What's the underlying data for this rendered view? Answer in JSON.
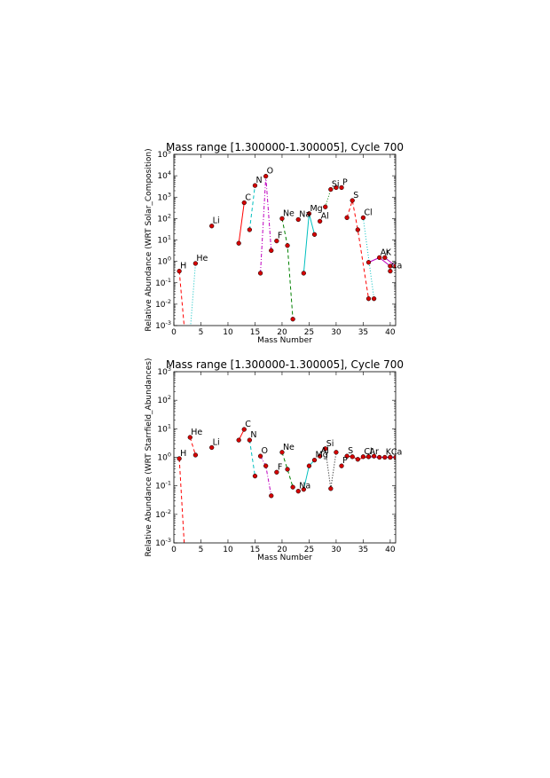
{
  "chart_data": [
    {
      "type": "line",
      "title": "Mass range [1.300000-1.300005], Cycle 700",
      "xlabel": "Mass Number",
      "ylabel": "Relative Abundance (WRT Solar_Composition)",
      "xlim": [
        0,
        41
      ],
      "ylim": [
        0.001,
        100000
      ],
      "yscale": "log",
      "xticks": [
        "0",
        "5",
        "10",
        "15",
        "20",
        "25",
        "30",
        "35",
        "40"
      ],
      "yticks": [
        {
          "base": "10",
          "exp": "-3"
        },
        {
          "base": "10",
          "exp": "-2"
        },
        {
          "base": "10",
          "exp": "-1"
        },
        {
          "base": "10",
          "exp": "0"
        },
        {
          "base": "10",
          "exp": "1"
        },
        {
          "base": "10",
          "exp": "2"
        },
        {
          "base": "10",
          "exp": "3"
        },
        {
          "base": "10",
          "exp": "4"
        },
        {
          "base": "10",
          "exp": "5"
        }
      ],
      "groups": [
        {
          "label": "H",
          "color": "#ff0000",
          "dash": "4,3",
          "points": [
            [
              1,
              0.35
            ],
            [
              2,
              0.0005
            ]
          ],
          "lx": 1,
          "ly": 0.35
        },
        {
          "label": "He",
          "color": "#00bfbf",
          "dash": "1,2",
          "points": [
            [
              3,
              0.0005
            ],
            [
              4,
              0.8
            ]
          ],
          "lx": 4,
          "ly": 0.8
        },
        {
          "label": "Li",
          "color": "#008000",
          "dash": "",
          "points": [
            [
              7,
              45
            ]
          ],
          "lx": 7,
          "ly": 45
        },
        {
          "label": "C",
          "color": "#ff0000",
          "dash": "",
          "points": [
            [
              12,
              7
            ],
            [
              13,
              550
            ]
          ],
          "lx": 13,
          "ly": 550
        },
        {
          "label": "N",
          "color": "#00bfbf",
          "dash": "4,3",
          "points": [
            [
              14,
              30
            ],
            [
              15,
              3500
            ]
          ],
          "lx": 15,
          "ly": 3500
        },
        {
          "label": "O",
          "color": "#bf00bf",
          "dash": "4,2,1,2",
          "points": [
            [
              16,
              0.28
            ],
            [
              17,
              9500
            ],
            [
              18,
              3.2
            ]
          ],
          "lx": 17,
          "ly": 9500
        },
        {
          "label": "F",
          "color": "#ff0000",
          "dash": "",
          "points": [
            [
              19,
              9
            ]
          ],
          "lx": 19,
          "ly": 9
        },
        {
          "label": "Ne",
          "color": "#008000",
          "dash": "4,3",
          "points": [
            [
              20,
              100
            ],
            [
              21,
              5.5
            ],
            [
              22,
              0.002
            ]
          ],
          "lx": 20,
          "ly": 100
        },
        {
          "label": "Na",
          "color": "#ff0000",
          "dash": "",
          "points": [
            [
              23,
              90
            ]
          ],
          "lx": 23,
          "ly": 90
        },
        {
          "label": "Mg",
          "color": "#00bfbf",
          "dash": "",
          "points": [
            [
              24,
              0.28
            ],
            [
              25,
              170
            ],
            [
              26,
              18
            ]
          ],
          "lx": 25,
          "ly": 170
        },
        {
          "label": "Al",
          "color": "#bf00bf",
          "dash": "",
          "points": [
            [
              27,
              75
            ]
          ],
          "lx": 27,
          "ly": 75
        },
        {
          "label": "Si",
          "color": "#008000",
          "dash": "1,2",
          "points": [
            [
              28,
              350
            ],
            [
              29,
              2300
            ],
            [
              30,
              2800
            ]
          ],
          "lx": 29,
          "ly": 2300
        },
        {
          "label": "P",
          "color": "#ff0000",
          "dash": "",
          "points": [
            [
              31,
              2800
            ]
          ],
          "lx": 31,
          "ly": 2800
        },
        {
          "label": "S",
          "color": "#ff0000",
          "dash": "4,3",
          "points": [
            [
              32,
              110
            ],
            [
              33,
              700
            ],
            [
              34,
              30
            ],
            [
              36,
              0.018
            ]
          ],
          "lx": 33,
          "ly": 700
        },
        {
          "label": "Cl",
          "color": "#00bfbf",
          "dash": "1,2",
          "points": [
            [
              35,
              110
            ],
            [
              37,
              0.018
            ]
          ],
          "lx": 35,
          "ly": 110
        },
        {
          "label": "Ar",
          "color": "#bf00bf",
          "dash": "",
          "points": [
            [
              36,
              0.9
            ],
            [
              38,
              1.5
            ],
            [
              40,
              0.6
            ]
          ],
          "lx": 38,
          "ly": 1.5
        },
        {
          "label": "K",
          "color": "#bf00bf",
          "dash": "",
          "points": [
            [
              39,
              1.5
            ],
            [
              41,
              0.6
            ]
          ],
          "lx": 39,
          "ly": 1.5
        },
        {
          "label": "Ca",
          "color": "#008000",
          "dash": "",
          "points": [
            [
              40,
              0.35
            ]
          ],
          "lx": 40,
          "ly": 0.35
        }
      ]
    },
    {
      "type": "line",
      "title": "Mass range [1.300000-1.300005], Cycle 700",
      "xlabel": "Mass Number",
      "ylabel": "Relative Abundance (WRT Starrfield_Abundances)",
      "xlim": [
        0,
        41
      ],
      "ylim": [
        0.001,
        1000
      ],
      "yscale": "log",
      "xticks": [
        "0",
        "5",
        "10",
        "15",
        "20",
        "25",
        "30",
        "35",
        "40"
      ],
      "yticks": [
        {
          "base": "10",
          "exp": "-3"
        },
        {
          "base": "10",
          "exp": "-2"
        },
        {
          "base": "10",
          "exp": "-1"
        },
        {
          "base": "10",
          "exp": "0"
        },
        {
          "base": "10",
          "exp": "1"
        },
        {
          "base": "10",
          "exp": "2"
        },
        {
          "base": "10",
          "exp": "3"
        }
      ],
      "groups": [
        {
          "label": "H",
          "color": "#ff0000",
          "dash": "4,3",
          "points": [
            [
              1,
              0.9
            ],
            [
              2,
              0.0005
            ]
          ],
          "lx": 1,
          "ly": 0.9
        },
        {
          "label": "He",
          "color": "#ff0000",
          "dash": "4,3",
          "points": [
            [
              3,
              5
            ],
            [
              4,
              1.2
            ]
          ],
          "lx": 3,
          "ly": 5
        },
        {
          "label": "Li",
          "color": "#008000",
          "dash": "",
          "points": [
            [
              7,
              2.2
            ]
          ],
          "lx": 7,
          "ly": 2.2
        },
        {
          "label": "C",
          "color": "#ff0000",
          "dash": "",
          "points": [
            [
              12,
              4
            ],
            [
              13,
              9.5
            ]
          ],
          "lx": 13,
          "ly": 9.5
        },
        {
          "label": "N",
          "color": "#00bfbf",
          "dash": "4,3",
          "points": [
            [
              14,
              4
            ],
            [
              15,
              0.22
            ]
          ],
          "lx": 14,
          "ly": 4
        },
        {
          "label": "O",
          "color": "#bf00bf",
          "dash": "4,2,1,2",
          "points": [
            [
              16,
              1.1
            ],
            [
              17,
              0.5
            ],
            [
              18,
              0.045
            ]
          ],
          "lx": 16,
          "ly": 1.1
        },
        {
          "label": "F",
          "color": "#ff0000",
          "dash": "",
          "points": [
            [
              19,
              0.3
            ]
          ],
          "lx": 19,
          "ly": 0.3
        },
        {
          "label": "Ne",
          "color": "#008000",
          "dash": "4,3",
          "points": [
            [
              20,
              1.5
            ],
            [
              21,
              0.38
            ],
            [
              22,
              0.09
            ]
          ],
          "lx": 20,
          "ly": 1.5
        },
        {
          "label": "Na",
          "color": "#ff0000",
          "dash": "",
          "points": [
            [
              23,
              0.065
            ]
          ],
          "lx": 23,
          "ly": 0.065
        },
        {
          "label": "Mg",
          "color": "#00bfbf",
          "dash": "",
          "points": [
            [
              24,
              0.075
            ],
            [
              25,
              0.5
            ],
            [
              26,
              0.8
            ]
          ],
          "lx": 26,
          "ly": 0.8
        },
        {
          "label": "Al",
          "color": "#bf00bf",
          "dash": "",
          "points": [
            [
              27,
              1.1
            ]
          ],
          "lx": 27,
          "ly": 1.1
        },
        {
          "label": "Si",
          "color": "#000000",
          "dash": "1,2",
          "points": [
            [
              28,
              2
            ],
            [
              29,
              0.08
            ],
            [
              30,
              1.5
            ]
          ],
          "lx": 28,
          "ly": 2
        },
        {
          "label": "P",
          "color": "#ff0000",
          "dash": "",
          "points": [
            [
              31,
              0.5
            ]
          ],
          "lx": 31,
          "ly": 0.5
        },
        {
          "label": "S",
          "color": "#ff0000",
          "dash": "4,3",
          "points": [
            [
              32,
              1.1
            ],
            [
              33,
              1.05
            ],
            [
              34,
              0.85
            ],
            [
              36,
              1.05
            ]
          ],
          "lx": 32,
          "ly": 1.1
        },
        {
          "label": "Cl",
          "color": "#00bfbf",
          "dash": "1,2",
          "points": [
            [
              35,
              1.05
            ],
            [
              37,
              1.1
            ]
          ],
          "lx": 35,
          "ly": 1.05
        },
        {
          "label": "Ar",
          "color": "#bf00bf",
          "dash": "",
          "points": [
            [
              36,
              1.05
            ],
            [
              38,
              1.0
            ],
            [
              40,
              1.0
            ]
          ],
          "lx": 36,
          "ly": 1.05
        },
        {
          "label": "K",
          "color": "#bf00bf",
          "dash": "",
          "points": [
            [
              39,
              1.0
            ],
            [
              41,
              1.0
            ]
          ],
          "lx": 39,
          "ly": 1.0
        },
        {
          "label": "Ca",
          "color": "#008000",
          "dash": "",
          "points": [
            [
              40,
              1.0
            ]
          ],
          "lx": 40,
          "ly": 1.0
        }
      ]
    }
  ]
}
